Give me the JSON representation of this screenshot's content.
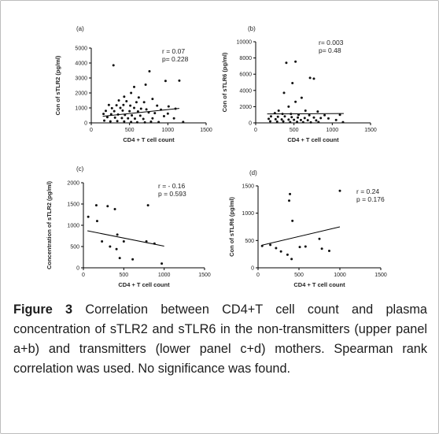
{
  "chart_data": [
    {
      "panel": "(a)",
      "type": "scatter",
      "xlabel": "CD4 + T cell count",
      "ylabel": "Con of sTLR2 (pg/ml)",
      "xlim": [
        0,
        1500
      ],
      "ylim": [
        0,
        5000
      ],
      "xticks": [
        0,
        500,
        1000,
        1500
      ],
      "yticks": [
        0,
        1000,
        2000,
        3000,
        4000,
        5000
      ],
      "annotation": [
        "r = 0.07",
        "p= 0.228"
      ],
      "trendline": [
        [
          150,
          440
        ],
        [
          1150,
          970
        ]
      ],
      "points": [
        [
          290,
          3850
        ],
        [
          760,
          3450
        ],
        [
          970,
          2800
        ],
        [
          1150,
          2820
        ],
        [
          560,
          2400
        ],
        [
          710,
          2550
        ],
        [
          520,
          2000
        ],
        [
          430,
          1750
        ],
        [
          620,
          1700
        ],
        [
          800,
          1600
        ],
        [
          360,
          1500
        ],
        [
          460,
          1450
        ],
        [
          590,
          1380
        ],
        [
          690,
          1380
        ],
        [
          230,
          1200
        ],
        [
          330,
          1180
        ],
        [
          420,
          1200
        ],
        [
          510,
          1150
        ],
        [
          860,
          1150
        ],
        [
          1010,
          1100
        ],
        [
          270,
          980
        ],
        [
          380,
          1000
        ],
        [
          560,
          1000
        ],
        [
          650,
          950
        ],
        [
          720,
          900
        ],
        [
          910,
          880
        ],
        [
          1100,
          950
        ],
        [
          190,
          800
        ],
        [
          300,
          780
        ],
        [
          410,
          820
        ],
        [
          500,
          780
        ],
        [
          610,
          760
        ],
        [
          750,
          700
        ],
        [
          830,
          650
        ],
        [
          1000,
          620
        ],
        [
          160,
          600
        ],
        [
          260,
          580
        ],
        [
          350,
          560
        ],
        [
          440,
          530
        ],
        [
          530,
          500
        ],
        [
          640,
          480
        ],
        [
          950,
          450
        ],
        [
          210,
          380
        ],
        [
          310,
          350
        ],
        [
          400,
          320
        ],
        [
          480,
          300
        ],
        [
          570,
          280
        ],
        [
          680,
          260
        ],
        [
          800,
          300
        ],
        [
          1080,
          300
        ],
        [
          170,
          150
        ],
        [
          250,
          100
        ],
        [
          340,
          120
        ],
        [
          430,
          90
        ],
        [
          520,
          60
        ],
        [
          600,
          40
        ],
        [
          700,
          30
        ],
        [
          780,
          80
        ],
        [
          880,
          50
        ],
        [
          1200,
          60
        ]
      ]
    },
    {
      "panel": "(b)",
      "type": "scatter",
      "xlabel": "CD4 + T cell count",
      "ylabel": "Con of sTLR6 (pg/ml)",
      "xlim": [
        0,
        1500
      ],
      "ylim": [
        0,
        10000
      ],
      "xticks": [
        0,
        500,
        1000,
        1500
      ],
      "yticks": [
        0,
        2000,
        4000,
        6000,
        8000,
        10000
      ],
      "annotation": [
        "r= 0.003",
        "p= 0.48"
      ],
      "trendline": [
        [
          150,
          1100
        ],
        [
          1150,
          1150
        ]
      ],
      "points": [
        [
          400,
          7400
        ],
        [
          520,
          7550
        ],
        [
          710,
          5550
        ],
        [
          760,
          5450
        ],
        [
          480,
          4900
        ],
        [
          370,
          3700
        ],
        [
          600,
          3100
        ],
        [
          520,
          2600
        ],
        [
          430,
          2000
        ],
        [
          300,
          1500
        ],
        [
          650,
          1500
        ],
        [
          810,
          1400
        ],
        [
          250,
          1200
        ],
        [
          350,
          1100
        ],
        [
          460,
          1100
        ],
        [
          560,
          1000
        ],
        [
          700,
          950
        ],
        [
          900,
          950
        ],
        [
          1100,
          1000
        ],
        [
          200,
          800
        ],
        [
          290,
          750
        ],
        [
          380,
          800
        ],
        [
          470,
          700
        ],
        [
          550,
          650
        ],
        [
          640,
          600
        ],
        [
          760,
          650
        ],
        [
          850,
          600
        ],
        [
          950,
          550
        ],
        [
          170,
          500
        ],
        [
          260,
          450
        ],
        [
          340,
          420
        ],
        [
          430,
          400
        ],
        [
          500,
          380
        ],
        [
          590,
          350
        ],
        [
          680,
          330
        ],
        [
          790,
          300
        ],
        [
          1050,
          350
        ],
        [
          190,
          200
        ],
        [
          280,
          150
        ],
        [
          360,
          180
        ],
        [
          450,
          100
        ],
        [
          540,
          120
        ],
        [
          620,
          80
        ],
        [
          720,
          60
        ],
        [
          820,
          100
        ],
        [
          1140,
          80
        ]
      ]
    },
    {
      "panel": "(c)",
      "type": "scatter",
      "xlabel": "CD4 + T cell count",
      "ylabel": "Concentration of sTLR2 (pg/ml)",
      "xlim": [
        0,
        1500
      ],
      "ylim": [
        0,
        2000
      ],
      "xticks": [
        0,
        500,
        1000,
        1500
      ],
      "yticks": [
        0,
        500,
        1000,
        1500,
        2000
      ],
      "annotation": [
        "r = - 0.16",
        "p = 0.593"
      ],
      "trendline": [
        [
          50,
          870
        ],
        [
          1000,
          510
        ]
      ],
      "points": [
        [
          160,
          1470
        ],
        [
          300,
          1450
        ],
        [
          390,
          1380
        ],
        [
          800,
          1470
        ],
        [
          60,
          1200
        ],
        [
          170,
          1100
        ],
        [
          420,
          780
        ],
        [
          230,
          620
        ],
        [
          500,
          620
        ],
        [
          780,
          620
        ],
        [
          880,
          570
        ],
        [
          330,
          500
        ],
        [
          410,
          440
        ],
        [
          450,
          230
        ],
        [
          970,
          100
        ],
        [
          610,
          200
        ]
      ]
    },
    {
      "panel": "(d)",
      "type": "scatter",
      "xlabel": "CD4 + T cell count",
      "ylabel": "Con of sTLR6 (pg/ml)",
      "xlim": [
        0,
        1500
      ],
      "ylim": [
        0,
        1500
      ],
      "xticks": [
        0,
        500,
        1000,
        1500
      ],
      "yticks": [
        0,
        500,
        1000,
        1500
      ],
      "annotation": [
        "r = 0.24",
        "p = 0.176"
      ],
      "trendline": [
        [
          50,
          415
        ],
        [
          1000,
          750
        ]
      ],
      "points": [
        [
          390,
          1350
        ],
        [
          380,
          1230
        ],
        [
          1000,
          1410
        ],
        [
          420,
          860
        ],
        [
          750,
          530
        ],
        [
          50,
          400
        ],
        [
          150,
          420
        ],
        [
          220,
          360
        ],
        [
          280,
          300
        ],
        [
          360,
          240
        ],
        [
          410,
          160
        ],
        [
          510,
          380
        ],
        [
          580,
          390
        ],
        [
          780,
          350
        ],
        [
          870,
          310
        ]
      ]
    }
  ],
  "caption": {
    "label": "Figure 3",
    "text": " Correlation between CD4+T cell count and plasma concentration of sTLR2 and sTLR6 in the non-transmitters (upper panel a+b) and transmitters (lower panel c+d) mothers. Spearman rank correlation was used. No significance was found."
  }
}
